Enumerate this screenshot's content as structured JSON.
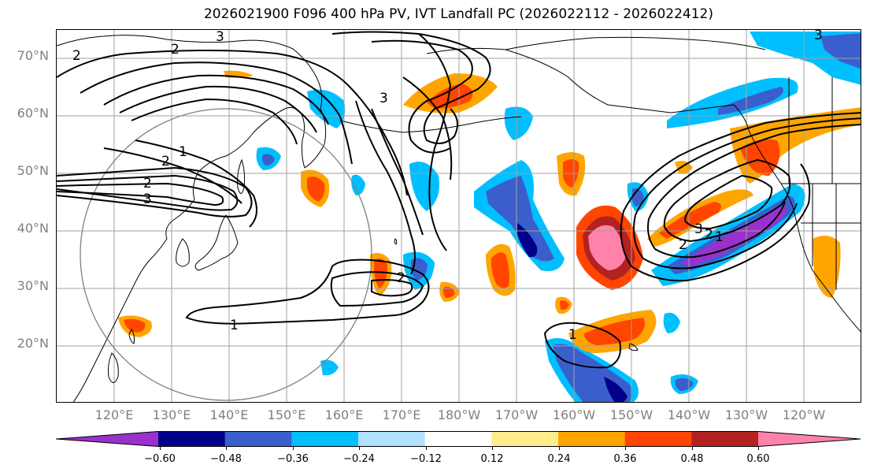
{
  "title": "2026021900 F096 400 hPa PV, IVT Landfall PC (2026022112 - 2026022412)",
  "lat_labels": [
    "70°N",
    "60°N",
    "50°N",
    "40°N",
    "30°N",
    "20°N"
  ],
  "lon_labels": [
    "120°E",
    "130°E",
    "140°E",
    "150°E",
    "160°E",
    "170°E",
    "180°W",
    "170°W",
    "160°W",
    "150°W",
    "140°W",
    "130°W",
    "120°W"
  ],
  "colorbar": {
    "ticks": [
      "−0.60",
      "−0.48",
      "−0.36",
      "−0.24",
      "−0.12",
      "0.12",
      "0.24",
      "0.36",
      "0.48",
      "0.60"
    ],
    "colors": [
      "#9932cc",
      "#00008b",
      "#3a5fcd",
      "#00bfff",
      "#b0e2ff",
      "#ffffff",
      "#ffec8b",
      "#ffa500",
      "#ff4500",
      "#b22222",
      "#ff82ab"
    ]
  },
  "contour_labels": [
    "2",
    "3",
    "2",
    "2",
    "1",
    "2",
    "3",
    "3",
    "2",
    "1",
    "2",
    "3",
    "2",
    "3",
    "1",
    "1"
  ],
  "colors": {
    "grid": "#a0a0a0",
    "coast": "#000000",
    "contour": "#000000",
    "circle": "#808080",
    "axis_label": "#808080"
  }
}
